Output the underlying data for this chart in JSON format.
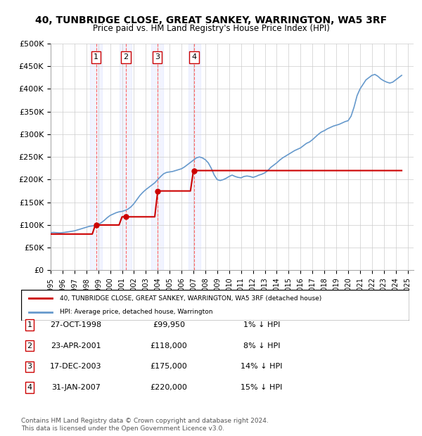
{
  "title": "40, TUNBRIDGE CLOSE, GREAT SANKEY, WARRINGTON, WA5 3RF",
  "subtitle": "Price paid vs. HM Land Registry's House Price Index (HPI)",
  "ylabel": "",
  "ylim": [
    0,
    500000
  ],
  "yticks": [
    0,
    50000,
    100000,
    150000,
    200000,
    250000,
    300000,
    350000,
    400000,
    450000,
    500000
  ],
  "ytick_labels": [
    "£0",
    "£50K",
    "£100K",
    "£150K",
    "£200K",
    "£250K",
    "£300K",
    "£350K",
    "£400K",
    "£450K",
    "£500K"
  ],
  "xlim_start": 1995.0,
  "xlim_end": 2025.5,
  "xticks": [
    1995,
    1996,
    1997,
    1998,
    1999,
    2000,
    2001,
    2002,
    2003,
    2004,
    2005,
    2006,
    2007,
    2008,
    2009,
    2010,
    2011,
    2012,
    2013,
    2014,
    2015,
    2016,
    2017,
    2018,
    2019,
    2020,
    2021,
    2022,
    2023,
    2024,
    2025
  ],
  "background_color": "#ffffff",
  "plot_bg_color": "#ffffff",
  "grid_color": "#cccccc",
  "hpi_color": "#6699cc",
  "price_color": "#cc0000",
  "sale_marker_color": "#cc0000",
  "transaction_box_color": "#cc0000",
  "transaction_line_color": "#ff6666",
  "transaction_fill_color": "#e8f0ff",
  "transactions": [
    {
      "num": 1,
      "date": "27-OCT-1998",
      "price": 99950,
      "year": 1998.82,
      "hpi_pct": "1%",
      "direction": "↓"
    },
    {
      "num": 2,
      "date": "23-APR-2001",
      "price": 118000,
      "year": 2001.31,
      "hpi_pct": "8%",
      "direction": "↓"
    },
    {
      "num": 3,
      "date": "17-DEC-2003",
      "price": 175000,
      "year": 2003.96,
      "hpi_pct": "14%",
      "direction": "↓"
    },
    {
      "num": 4,
      "date": "31-JAN-2007",
      "price": 220000,
      "year": 2007.08,
      "hpi_pct": "15%",
      "direction": "↓"
    }
  ],
  "legend_property_label": "40, TUNBRIDGE CLOSE, GREAT SANKEY, WARRINGTON, WA5 3RF (detached house)",
  "legend_hpi_label": "HPI: Average price, detached house, Warrington",
  "footer": "Contains HM Land Registry data © Crown copyright and database right 2024.\nThis data is licensed under the Open Government Licence v3.0.",
  "hpi_data_x": [
    1995.0,
    1995.25,
    1995.5,
    1995.75,
    1996.0,
    1996.25,
    1996.5,
    1996.75,
    1997.0,
    1997.25,
    1997.5,
    1997.75,
    1998.0,
    1998.25,
    1998.5,
    1998.75,
    1999.0,
    1999.25,
    1999.5,
    1999.75,
    2000.0,
    2000.25,
    2000.5,
    2000.75,
    2001.0,
    2001.25,
    2001.5,
    2001.75,
    2002.0,
    2002.25,
    2002.5,
    2002.75,
    2003.0,
    2003.25,
    2003.5,
    2003.75,
    2004.0,
    2004.25,
    2004.5,
    2004.75,
    2005.0,
    2005.25,
    2005.5,
    2005.75,
    2006.0,
    2006.25,
    2006.5,
    2006.75,
    2007.0,
    2007.25,
    2007.5,
    2007.75,
    2008.0,
    2008.25,
    2008.5,
    2008.75,
    2009.0,
    2009.25,
    2009.5,
    2009.75,
    2010.0,
    2010.25,
    2010.5,
    2010.75,
    2011.0,
    2011.25,
    2011.5,
    2011.75,
    2012.0,
    2012.25,
    2012.5,
    2012.75,
    2013.0,
    2013.25,
    2013.5,
    2013.75,
    2014.0,
    2014.25,
    2014.5,
    2014.75,
    2015.0,
    2015.25,
    2015.5,
    2015.75,
    2016.0,
    2016.25,
    2016.5,
    2016.75,
    2017.0,
    2017.25,
    2017.5,
    2017.75,
    2018.0,
    2018.25,
    2018.5,
    2018.75,
    2019.0,
    2019.25,
    2019.5,
    2019.75,
    2020.0,
    2020.25,
    2020.5,
    2020.75,
    2021.0,
    2021.25,
    2021.5,
    2021.75,
    2022.0,
    2022.25,
    2022.5,
    2022.75,
    2023.0,
    2023.25,
    2023.5,
    2023.75,
    2024.0,
    2024.25,
    2024.5
  ],
  "hpi_data_y": [
    83000,
    83500,
    83000,
    82500,
    83000,
    84000,
    85000,
    86000,
    87000,
    89000,
    91000,
    93000,
    95000,
    97000,
    98000,
    99000,
    101000,
    105000,
    110000,
    116000,
    121000,
    124000,
    127000,
    129000,
    130000,
    132000,
    135000,
    140000,
    147000,
    156000,
    165000,
    172000,
    178000,
    183000,
    188000,
    193000,
    200000,
    207000,
    213000,
    216000,
    217000,
    218000,
    220000,
    222000,
    224000,
    228000,
    233000,
    238000,
    243000,
    248000,
    250000,
    248000,
    244000,
    237000,
    225000,
    210000,
    200000,
    198000,
    200000,
    203000,
    207000,
    210000,
    207000,
    205000,
    204000,
    207000,
    208000,
    207000,
    205000,
    207000,
    210000,
    212000,
    215000,
    220000,
    227000,
    232000,
    237000,
    243000,
    248000,
    252000,
    256000,
    260000,
    264000,
    267000,
    270000,
    275000,
    280000,
    283000,
    288000,
    294000,
    300000,
    305000,
    308000,
    312000,
    315000,
    318000,
    320000,
    322000,
    325000,
    328000,
    330000,
    340000,
    360000,
    385000,
    400000,
    410000,
    420000,
    425000,
    430000,
    432000,
    428000,
    422000,
    418000,
    415000,
    413000,
    415000,
    420000,
    425000,
    430000
  ],
  "price_data_x": [
    1995.0,
    1995.25,
    1995.5,
    1995.75,
    1996.0,
    1996.25,
    1996.5,
    1996.75,
    1997.0,
    1997.25,
    1997.5,
    1997.75,
    1998.0,
    1998.25,
    1998.5,
    1998.75,
    1999.0,
    1999.25,
    1999.5,
    1999.75,
    2000.0,
    2000.25,
    2000.5,
    2000.75,
    2001.0,
    2001.25,
    2001.5,
    2001.75,
    2002.0,
    2002.25,
    2002.5,
    2002.75,
    2003.0,
    2003.25,
    2003.5,
    2003.75,
    2004.0,
    2004.25,
    2004.5,
    2004.75,
    2005.0,
    2005.25,
    2005.5,
    2005.75,
    2006.0,
    2006.25,
    2006.5,
    2006.75,
    2007.0,
    2007.25,
    2007.5,
    2007.75,
    2008.0,
    2008.25,
    2008.5,
    2008.75,
    2009.0,
    2009.25,
    2009.5,
    2009.75,
    2010.0,
    2010.25,
    2010.5,
    2010.75,
    2011.0,
    2011.25,
    2011.5,
    2011.75,
    2012.0,
    2012.25,
    2012.5,
    2012.75,
    2013.0,
    2013.25,
    2013.5,
    2013.75,
    2014.0,
    2014.25,
    2014.5,
    2014.75,
    2015.0,
    2015.25,
    2015.5,
    2015.75,
    2016.0,
    2016.25,
    2016.5,
    2016.75,
    2017.0,
    2017.25,
    2017.5,
    2017.75,
    2018.0,
    2018.25,
    2018.5,
    2018.75,
    2019.0,
    2019.25,
    2019.5,
    2019.75,
    2020.0,
    2020.25,
    2020.5,
    2020.75,
    2021.0,
    2021.25,
    2021.5,
    2021.75,
    2022.0,
    2022.25,
    2022.5,
    2022.75,
    2023.0,
    2023.25,
    2023.5,
    2023.75,
    2024.0,
    2024.25,
    2024.5
  ],
  "price_data_y": [
    80000,
    80000,
    80000,
    80000,
    80000,
    80000,
    80000,
    80000,
    80000,
    80000,
    80000,
    80000,
    80000,
    80000,
    80000,
    99950,
    99950,
    99950,
    99950,
    99950,
    99950,
    99950,
    99950,
    99950,
    118000,
    118000,
    118000,
    118000,
    118000,
    118000,
    118000,
    118000,
    118000,
    118000,
    118000,
    118000,
    175000,
    175000,
    175000,
    175000,
    175000,
    175000,
    175000,
    175000,
    175000,
    175000,
    175000,
    175000,
    220000,
    220000,
    220000,
    220000,
    220000,
    220000,
    220000,
    220000,
    220000,
    220000,
    220000,
    220000,
    220000,
    220000,
    220000,
    220000,
    220000,
    220000,
    220000,
    220000,
    220000,
    220000,
    220000,
    220000,
    220000,
    220000,
    220000,
    220000,
    220000,
    220000,
    220000,
    220000,
    220000,
    220000,
    220000,
    220000,
    220000,
    220000,
    220000,
    220000,
    220000,
    220000,
    220000,
    220000,
    220000,
    220000,
    220000,
    220000,
    220000,
    220000,
    220000,
    220000,
    220000,
    220000,
    220000,
    220000,
    220000,
    220000,
    220000,
    220000,
    220000,
    220000,
    220000,
    220000,
    220000,
    220000,
    220000,
    220000,
    220000,
    220000,
    220000
  ]
}
